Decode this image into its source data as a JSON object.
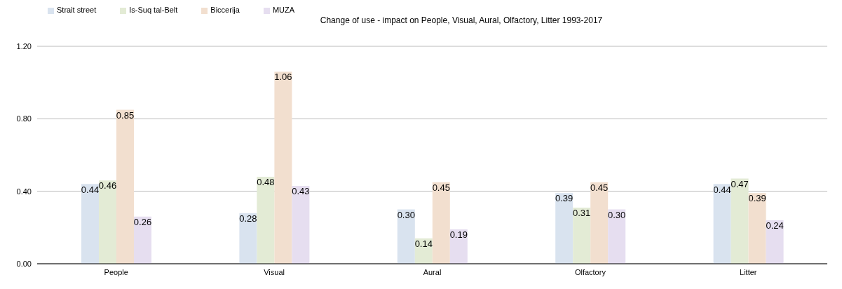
{
  "chart_data": {
    "type": "bar",
    "title": "Change of use - impact on People, Visual, Aural, Olfactory, Litter 1993-2017",
    "categories": [
      "People",
      "Visual",
      "Aural",
      "Olfactory",
      "Litter"
    ],
    "series": [
      {
        "name": "Strait street",
        "color": "#d9e3ef",
        "values": [
          0.44,
          0.28,
          0.3,
          0.39,
          0.44
        ],
        "value_labels": [
          "0.44",
          "0.28",
          "0.30",
          "0.39",
          "0.44"
        ]
      },
      {
        "name": "Is-Suq tal-Belt",
        "color": "#e3ebd5",
        "values": [
          0.46,
          0.48,
          0.14,
          0.31,
          0.47
        ],
        "value_labels": [
          "0.46",
          "0.48",
          "0.14",
          "0.31",
          "0.47"
        ]
      },
      {
        "name": "Biccerija",
        "color": "#f2dfcf",
        "values": [
          0.85,
          1.06,
          0.45,
          0.45,
          0.39
        ],
        "value_labels": [
          "0.85",
          "1.06",
          "0.45",
          "0.45",
          "0.39"
        ]
      },
      {
        "name": "MUZA",
        "color": "#e6def0",
        "values": [
          0.26,
          0.43,
          0.19,
          0.3,
          0.24
        ],
        "value_labels": [
          "0.26",
          "0.43",
          "0.19",
          "0.30",
          "0.24"
        ]
      }
    ],
    "ylim": [
      0,
      1.2
    ],
    "yticks": [
      {
        "value": 0,
        "label": "0.00"
      },
      {
        "value": 0.4,
        "label": "0.40"
      },
      {
        "value": 0.8,
        "label": "0.80"
      },
      {
        "value": 1.2,
        "label": "1.20"
      }
    ],
    "grid": "y",
    "legend": "top left"
  }
}
